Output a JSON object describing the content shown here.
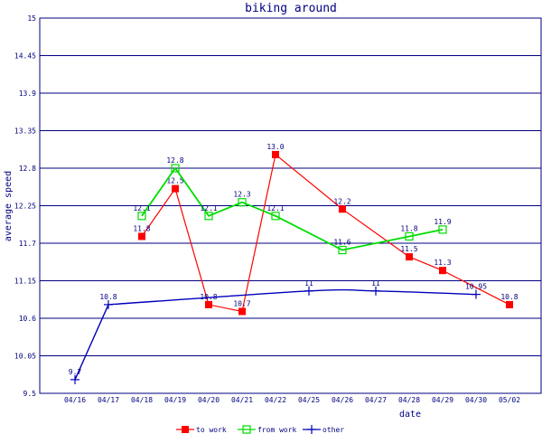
{
  "chart_data": {
    "type": "line",
    "title": "biking around",
    "xlabel": "date",
    "ylabel": "average speed",
    "ylim": [
      9.5,
      15
    ],
    "y_ticks": [
      "9.5",
      "10.05",
      "10.6",
      "11.15",
      "11.7",
      "12.25",
      "12.8",
      "13.35",
      "13.9",
      "14.45",
      "15"
    ],
    "categories": [
      "04/16",
      "04/17",
      "04/18",
      "04/19",
      "04/20",
      "04/21",
      "04/22",
      "04/25",
      "04/26",
      "04/27",
      "04/28",
      "04/29",
      "04/30",
      "05/02"
    ],
    "grid": "horizontal",
    "legend": "bottom",
    "series": [
      {
        "name": "to work",
        "color": "#ff0000",
        "marker": "filled-square",
        "values": [
          null,
          null,
          11.8,
          12.5,
          10.8,
          10.7,
          13.0,
          null,
          12.2,
          null,
          11.5,
          11.3,
          null,
          10.8
        ],
        "labels": [
          null,
          null,
          "11.8",
          "12.5",
          "10.8",
          "10.7",
          "13.0",
          null,
          "12.2",
          null,
          "11.5",
          "11.3",
          null,
          "10.8"
        ]
      },
      {
        "name": "from work",
        "color": "#00dd00",
        "marker": "open-square",
        "values": [
          null,
          null,
          12.1,
          12.8,
          12.1,
          12.3,
          12.1,
          null,
          11.6,
          null,
          11.8,
          11.9,
          null,
          null
        ],
        "labels": [
          null,
          null,
          "12.1",
          "12.8",
          "12.1",
          "12.3",
          "12.1",
          null,
          "11.6",
          null,
          "11.8",
          "11.9",
          null,
          null
        ]
      },
      {
        "name": "other",
        "color": "#0000bb",
        "marker": "plus",
        "values": [
          9.7,
          10.8,
          null,
          null,
          null,
          null,
          null,
          11.0,
          null,
          11.0,
          null,
          null,
          10.95,
          null
        ],
        "labels": [
          "9.7",
          "10.8",
          null,
          null,
          null,
          null,
          null,
          "11",
          null,
          "11",
          null,
          null,
          "10.95",
          null
        ]
      }
    ]
  }
}
